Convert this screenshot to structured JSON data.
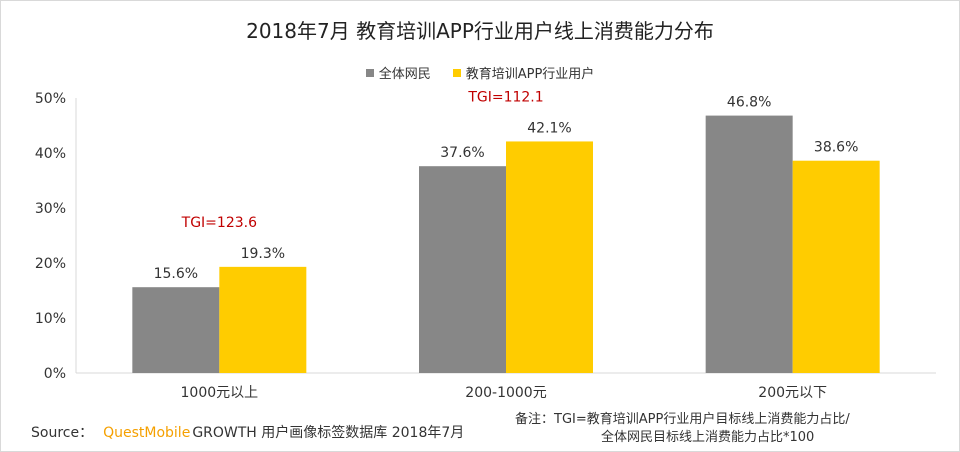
{
  "chart_data": {
    "type": "bar",
    "title": "2018年7月 教育培训APP行业用户线上消费能力分布",
    "categories": [
      "1000元以上",
      "200-1000元",
      "200元以下"
    ],
    "series": [
      {
        "name": "全体网民",
        "values": [
          15.6,
          37.6,
          46.8
        ],
        "labels": [
          "15.6%",
          "37.6%",
          "46.8%"
        ],
        "color": "#878787"
      },
      {
        "name": "教育培训APP行业用户",
        "values": [
          19.3,
          42.1,
          38.6
        ],
        "labels": [
          "19.3%",
          "42.1%",
          "38.6%"
        ],
        "color": "#ffcc00"
      }
    ],
    "ylim": [
      0,
      50
    ],
    "yticks": [
      "0%",
      "10%",
      "20%",
      "30%",
      "40%",
      "50%"
    ],
    "grid": false,
    "legend": "top-center",
    "annotations": [
      {
        "text": "TGI=123.6",
        "category": "1000元以上",
        "color": "#c00000"
      },
      {
        "text": "TGI=112.1",
        "category": "200-1000元",
        "color": "#c00000"
      }
    ]
  },
  "footer": {
    "source_label": "Source：",
    "brand": "QuestMobile",
    "source_rest": "GROWTH 用户画像标签数据库 2018年7月",
    "note_line1": "备注：TGI=教育培训APP行业用户目标线上消费能力占比/",
    "note_line2": "全体网民目标线上消费能力占比*100"
  }
}
